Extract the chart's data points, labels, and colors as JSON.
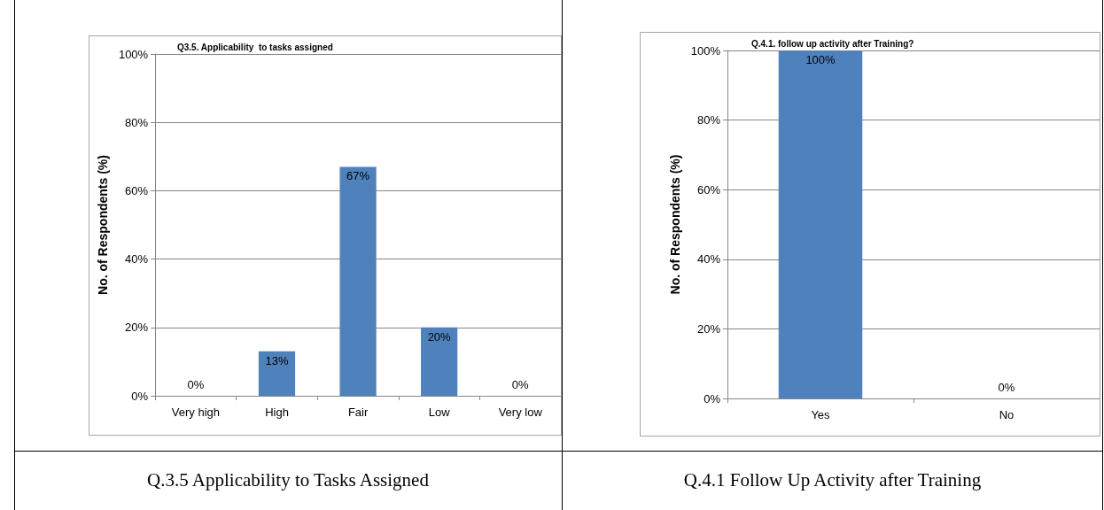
{
  "chart_data": [
    {
      "type": "bar",
      "title": "Q3.5. Applicability  to tasks assigned",
      "ylabel": "No. of Respondents (%)",
      "categories": [
        "Very high",
        "High",
        "Fair",
        "Low",
        "Very low"
      ],
      "values": [
        0,
        13,
        67,
        20,
        0
      ],
      "value_labels": [
        "0%",
        "13%",
        "67%",
        "20%",
        "0%"
      ],
      "color": "#4f81bd",
      "ylim": [
        0,
        100
      ],
      "yticks": [
        {
          "value": 0,
          "label": "0%"
        },
        {
          "value": 20,
          "label": "20%"
        },
        {
          "value": 40,
          "label": "40%"
        },
        {
          "value": 60,
          "label": "60%"
        },
        {
          "value": 80,
          "label": "80%"
        },
        {
          "value": 100,
          "label": "100%"
        }
      ],
      "grid": "y",
      "annotations": [
        "Q.3.5 Applicability to Tasks Assigned"
      ]
    },
    {
      "type": "bar",
      "title": "Q.4.1. follow up activity after Training?",
      "ylabel": "No. of Respondents (%)",
      "categories": [
        "Yes",
        "No"
      ],
      "values": [
        100,
        0
      ],
      "value_labels": [
        "100%",
        "0%"
      ],
      "color": "#4f81bd",
      "ylim": [
        0,
        100
      ],
      "yticks": [
        {
          "value": 0,
          "label": "0%"
        },
        {
          "value": 20,
          "label": "20%"
        },
        {
          "value": 40,
          "label": "40%"
        },
        {
          "value": 60,
          "label": "60%"
        },
        {
          "value": 80,
          "label": "80%"
        },
        {
          "value": 100,
          "label": "100%"
        }
      ],
      "grid": "y",
      "annotations": [
        "Q.4.1 Follow Up Activity after Training"
      ]
    }
  ]
}
